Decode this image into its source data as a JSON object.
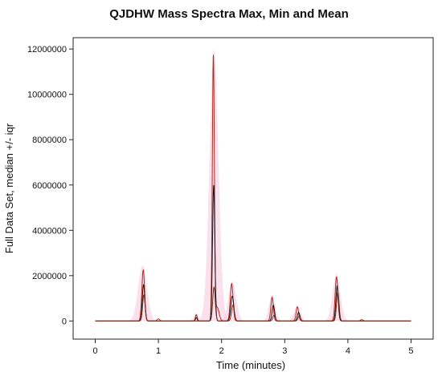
{
  "chart_data": {
    "type": "line",
    "title": "QJDHW Mass Spectra Max, Min and Mean",
    "xlabel": "Time (minutes)",
    "ylabel": "Full Data Set, median +/- iqr",
    "xlim": [
      -0.35,
      5.35
    ],
    "ylim": [
      -800000,
      12500000
    ],
    "xticks": [
      0,
      1,
      2,
      3,
      4,
      5
    ],
    "yticks": [
      0,
      2000000,
      4000000,
      6000000,
      8000000,
      10000000,
      12000000
    ],
    "ytick_labels": [
      "0",
      "2000000",
      "4000000",
      "6000000",
      "8000000",
      "10000000",
      "12000000"
    ],
    "grid": false,
    "band_color": "#f6c6de",
    "series": [
      {
        "role": "max",
        "color": "#b22a1e",
        "peaks": [
          {
            "t": 0.76,
            "h": 2250000,
            "w": 0.022
          },
          {
            "t": 1.0,
            "h": 90000,
            "w": 0.02
          },
          {
            "t": 1.6,
            "h": 280000,
            "w": 0.014
          },
          {
            "t": 1.87,
            "h": 11700000,
            "w": 0.016
          },
          {
            "t": 1.93,
            "h": 600000,
            "w": 0.03
          },
          {
            "t": 2.16,
            "h": 1650000,
            "w": 0.022
          },
          {
            "t": 2.8,
            "h": 1050000,
            "w": 0.02
          },
          {
            "t": 3.2,
            "h": 620000,
            "w": 0.02
          },
          {
            "t": 3.82,
            "h": 1950000,
            "w": 0.022
          },
          {
            "t": 4.22,
            "h": 60000,
            "w": 0.02
          }
        ]
      },
      {
        "role": "median",
        "color": "#1a1a1a",
        "peaks": [
          {
            "t": 0.765,
            "h": 1600000,
            "w": 0.02
          },
          {
            "t": 1.6,
            "h": 150000,
            "w": 0.013
          },
          {
            "t": 1.875,
            "h": 6000000,
            "w": 0.018
          },
          {
            "t": 2.17,
            "h": 1100000,
            "w": 0.024
          },
          {
            "t": 2.82,
            "h": 700000,
            "w": 0.02
          },
          {
            "t": 3.22,
            "h": 380000,
            "w": 0.02
          },
          {
            "t": 3.83,
            "h": 1550000,
            "w": 0.02
          }
        ]
      },
      {
        "role": "min",
        "color": "#7a2a1a",
        "peaks": [
          {
            "t": 0.77,
            "h": 1150000,
            "w": 0.02
          },
          {
            "t": 1.88,
            "h": 1500000,
            "w": 0.02
          },
          {
            "t": 2.18,
            "h": 700000,
            "w": 0.022
          },
          {
            "t": 2.83,
            "h": 250000,
            "w": 0.02
          },
          {
            "t": 3.23,
            "h": 220000,
            "w": 0.02
          },
          {
            "t": 3.84,
            "h": 1300000,
            "w": 0.02
          }
        ]
      }
    ],
    "bands": [
      {
        "t": 0.75,
        "h": 2450000,
        "w": 0.07
      },
      {
        "t": 1.6,
        "h": 330000,
        "w": 0.04
      },
      {
        "t": 1.88,
        "h": 12000000,
        "w": 0.07
      },
      {
        "t": 2.17,
        "h": 1750000,
        "w": 0.06
      },
      {
        "t": 2.8,
        "h": 1150000,
        "w": 0.05
      },
      {
        "t": 3.2,
        "h": 700000,
        "w": 0.05
      },
      {
        "t": 3.82,
        "h": 2100000,
        "w": 0.06
      }
    ]
  }
}
